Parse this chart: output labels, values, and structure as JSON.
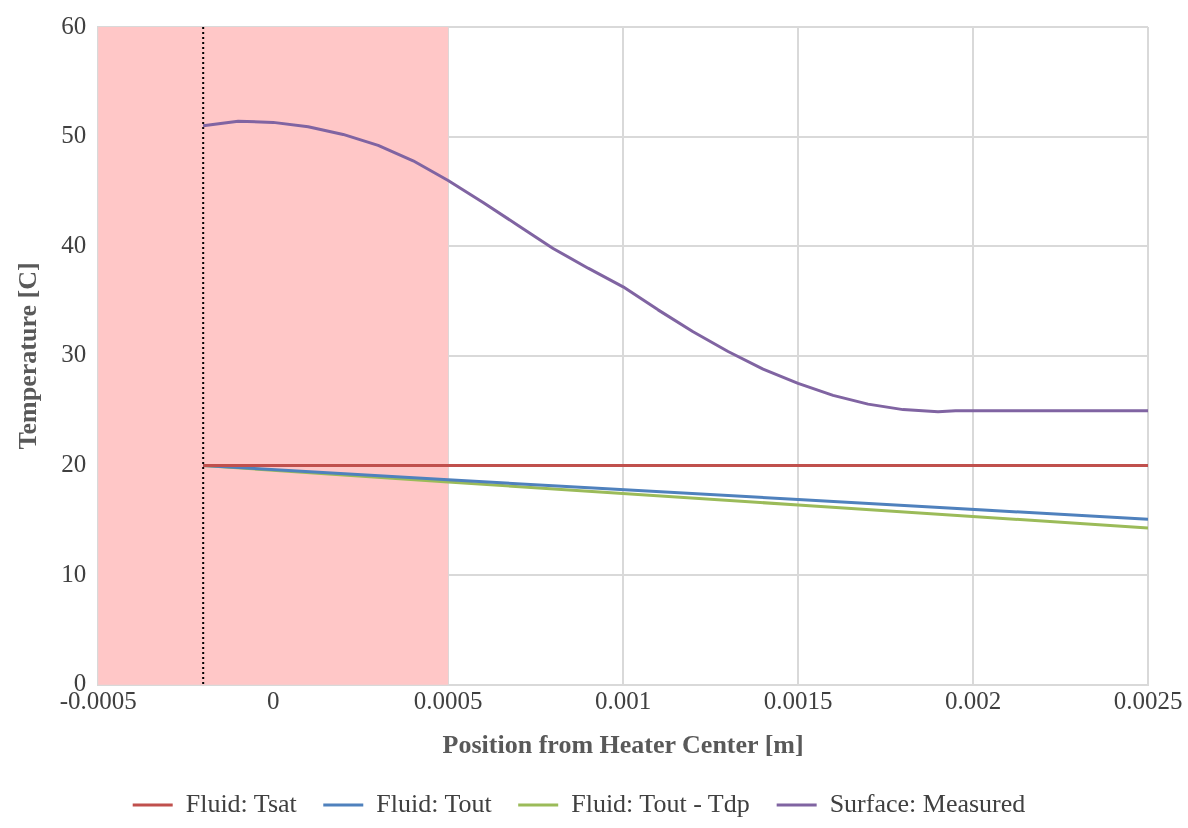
{
  "chart_data": {
    "type": "line",
    "xlabel": "Position from Heater Center [m]",
    "ylabel": "Temperature [C]",
    "xlim": [
      -0.0005,
      0.0025
    ],
    "xticks": [
      -0.0005,
      0,
      0.0005,
      0.001,
      0.0015,
      0.002,
      0.0025
    ],
    "ylim": [
      0,
      60
    ],
    "yticks": [
      0,
      10,
      20,
      30,
      40,
      50,
      60
    ],
    "grid": true,
    "legend": "bottom",
    "marker": "none",
    "line_style": "solid",
    "bands": [
      {
        "axis": "x",
        "from": -0.0005,
        "to": 0.0005,
        "color": "#ffc7c7"
      }
    ],
    "ref_lines": [
      {
        "axis": "x",
        "value": -0.0002,
        "color": "#000000",
        "line_style": "dotted"
      }
    ],
    "series": [
      {
        "name": "Fluid: Tsat",
        "color": "#c0504d",
        "x": [
          -0.0002,
          0.0025
        ],
        "values": [
          20,
          20
        ]
      },
      {
        "name": "Fluid: Tout",
        "color": "#4f81bd",
        "x": [
          -0.0002,
          0.0005,
          0.0015,
          0.0025
        ],
        "values": [
          20,
          18.7,
          16.9,
          15.1
        ]
      },
      {
        "name": "Fluid: Tout - Tdp",
        "color": "#9bbb59",
        "x": [
          -0.0002,
          0.0005,
          0.0015,
          0.0025
        ],
        "values": [
          20,
          18.5,
          16.4,
          14.3
        ]
      },
      {
        "name": "Surface: Measured",
        "color": "#8064a2",
        "x": [
          -0.0002,
          -0.0001,
          0,
          0.0001,
          0.0002,
          0.0003,
          0.0004,
          0.0005,
          0.0006,
          0.0007,
          0.0008,
          0.0009,
          0.001,
          0.0011,
          0.0012,
          0.0013,
          0.0014,
          0.0015,
          0.0016,
          0.0017,
          0.0018,
          0.0019,
          0.00195,
          0.002,
          0.0025
        ],
        "values": [
          51.0,
          51.4,
          51.3,
          50.9,
          50.2,
          49.2,
          47.8,
          46.0,
          44.0,
          41.9,
          39.8,
          38.0,
          36.3,
          34.2,
          32.2,
          30.4,
          28.8,
          27.5,
          26.4,
          25.6,
          25.1,
          24.9,
          25.0,
          25.0,
          25.0
        ]
      }
    ]
  }
}
